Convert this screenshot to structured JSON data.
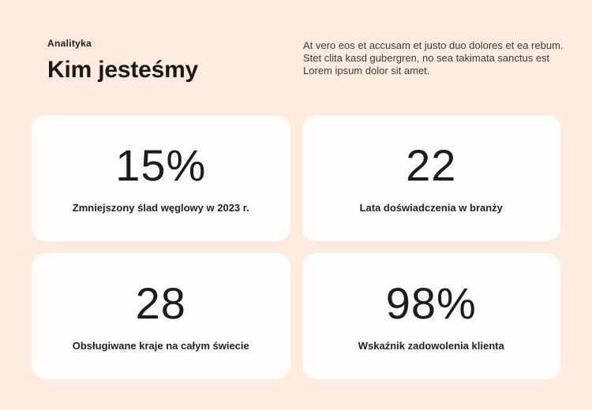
{
  "colors": {
    "page_background": "#fcebde",
    "card_background": "#fefdfc",
    "heading_text": "#1b1916",
    "paragraph_text": "#3e3a36"
  },
  "header": {
    "eyebrow": "Analityka",
    "title": "Kim jesteśmy",
    "paragraph_lines": [
      "At vero eos et accusam et justo duo dolores et ea rebum.",
      "Stet clita kasd gubergren, no sea takimata sanctus est",
      "Lorem ipsum dolor sit amet."
    ]
  },
  "stats": {
    "cards": [
      {
        "value": "15%",
        "label": "Zmniejszony ślad węglowy w 2023 r."
      },
      {
        "value": "22",
        "label": "Lata doświadczenia w branży"
      },
      {
        "value": "28",
        "label": "Obsługiwane kraje na całym świecie"
      },
      {
        "value": "98%",
        "label": "Wskaźnik zadowolenia klienta"
      }
    ]
  }
}
